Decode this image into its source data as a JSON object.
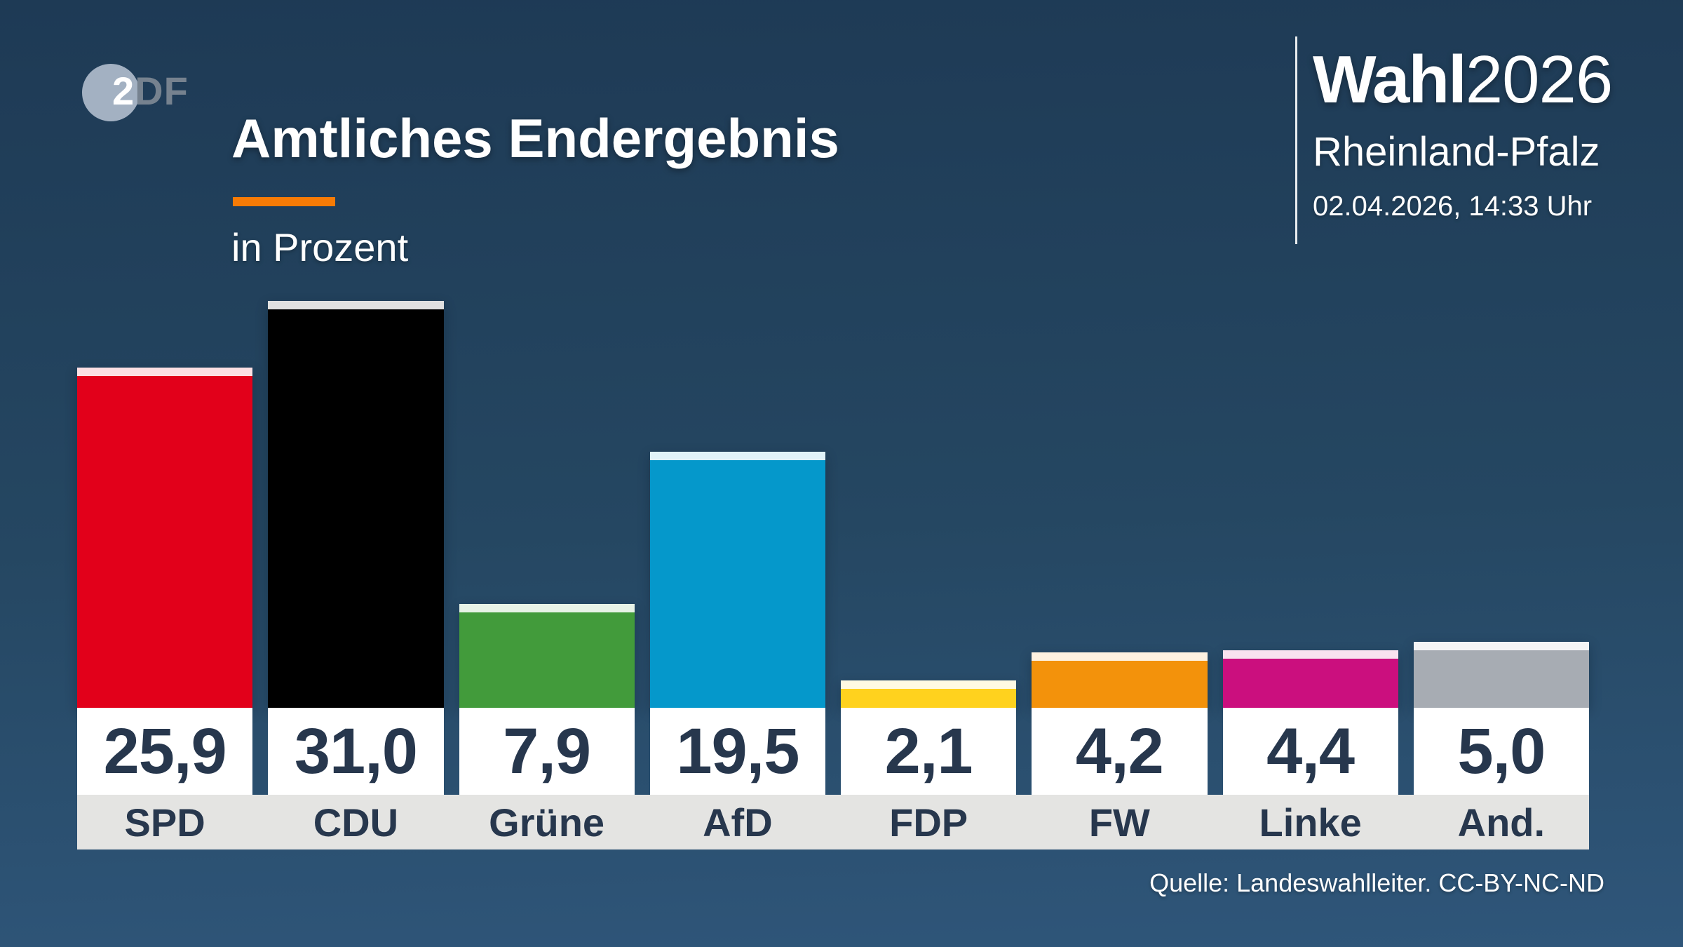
{
  "header": {
    "logo_2": "2",
    "logo_df": "DF",
    "title": "Amtliches Endergebnis",
    "subtitle": "in Prozent"
  },
  "brand": {
    "wahl_bold": "Wahl",
    "wahl_year": "2026",
    "region": "Rheinland-Pfalz",
    "datetime": "02.04.2026, 14:33 Uhr"
  },
  "source": "Quelle: Landeswahlleiter. CC-BY-NC-ND",
  "colors": {
    "background_top": "#1e3a55",
    "background_bottom": "#2f567a",
    "accent_orange": "#f77b05",
    "text_dark": "#27374d",
    "band_gray": "#e4e4e2",
    "bar_cap": "rgba(255,255,255,0.88)"
  },
  "chart_data": {
    "type": "bar",
    "title": "Amtliches Endergebnis",
    "subtitle": "in Prozent",
    "categories": [
      "SPD",
      "CDU",
      "Grüne",
      "AfD",
      "FDP",
      "FW",
      "Linke",
      "And."
    ],
    "values": [
      25.9,
      31.0,
      7.9,
      19.5,
      2.1,
      4.2,
      4.4,
      5.0
    ],
    "value_labels": [
      "25,9",
      "31,0",
      "7,9",
      "19,5",
      "2,1",
      "4,2",
      "4,4",
      "5,0"
    ],
    "bar_colors": [
      "#e2001a",
      "#000000",
      "#429b3b",
      "#0598cb",
      "#ffd21e",
      "#f3920b",
      "#cb0f7e",
      "#a7acb3"
    ],
    "xlabel": "",
    "ylabel": "Prozent",
    "ylim": [
      0,
      31
    ],
    "grid": false,
    "legend": false
  }
}
